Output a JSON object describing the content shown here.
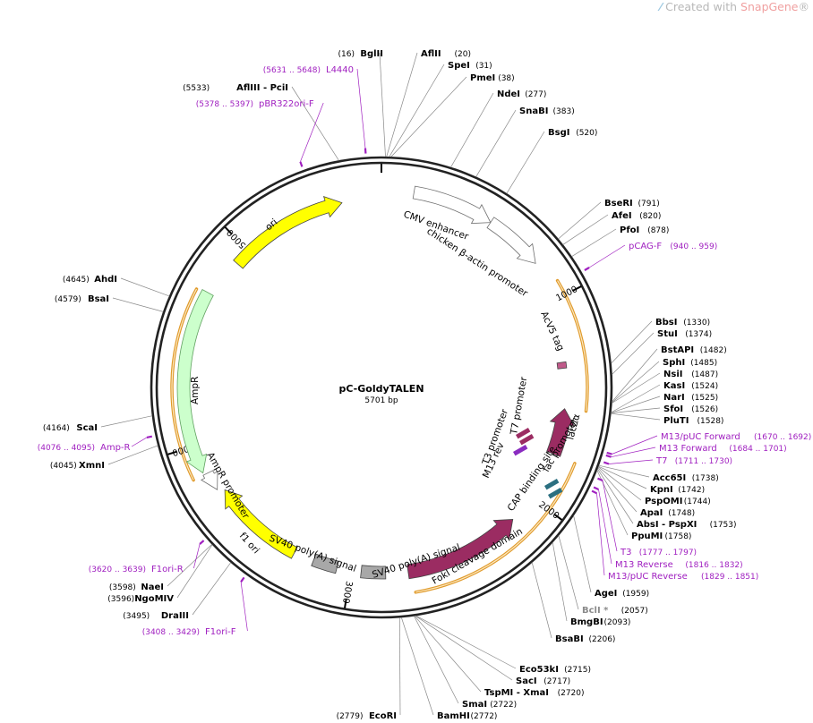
{
  "watermark": {
    "prefix": "Created with ",
    "brand": "SnapGene",
    "mark": "®"
  },
  "plasmid": {
    "name": "pC-GoldyTALEN",
    "size_label": "5701 bp",
    "length": 5701
  },
  "ticks": [
    {
      "label": "1000",
      "pos": 1000
    },
    {
      "label": "2000",
      "pos": 2000
    },
    {
      "label": "3000",
      "pos": 3000
    },
    {
      "label": "4000",
      "pos": 4000
    },
    {
      "label": "5000",
      "pos": 5000
    }
  ],
  "features": [
    {
      "name": "CMV enhancer",
      "start": 150,
      "end": 530,
      "color": "#ffffff",
      "stroke": "#707070"
    },
    {
      "name": "chicken β-actin promoter",
      "start": 530,
      "end": 810,
      "color": "#ffffff",
      "stroke": "#707070"
    },
    {
      "name": "AcV5 tag",
      "start": 1300,
      "end": 1330,
      "color": "#c05a8a"
    },
    {
      "name": "lacZα",
      "start": 1530,
      "end": 1760,
      "color": "#9b2c62"
    },
    {
      "name": "FokI cleavage domain",
      "start": 2140,
      "end": 2720,
      "color": "#9b2c62"
    },
    {
      "name": "SV40 poly(A) signal",
      "start": 2830,
      "end": 2950,
      "color": "#a8a8a8"
    },
    {
      "name": "SV40 poly(A) signal",
      "start": 3070,
      "end": 3190,
      "color": "#a8a8a8"
    },
    {
      "name": "f1 ori",
      "start": 3290,
      "end": 3750,
      "color": "#ffff00"
    },
    {
      "name": "AmpR promoter",
      "start": 3770,
      "end": 3860,
      "color": "#ffffff",
      "stroke": "#707070"
    },
    {
      "name": "AmpR",
      "start": 3870,
      "end": 4730,
      "color": "#ccffcc",
      "stroke": "#60a060"
    },
    {
      "name": "ori",
      "start": 4920,
      "end": 5510,
      "color": "#ffff00"
    }
  ],
  "small_features": [
    {
      "name": "M13 rev",
      "pos": 1680
    },
    {
      "name": "T3 promoter",
      "pos": 1700
    },
    {
      "name": "T7 promoter",
      "pos": 1720
    },
    {
      "name": "lac promoter",
      "pos": 1890
    },
    {
      "name": "CAP binding site",
      "pos": 1960
    }
  ],
  "sites": [
    {
      "name": "BglII",
      "pos_label": "(16)",
      "pos": 16
    },
    {
      "name": "AflII",
      "pos_label": "(20)",
      "pos": 20
    },
    {
      "name": "SpeI",
      "pos_label": "(31)",
      "pos": 31
    },
    {
      "name": "PmeI",
      "pos_label": "(38)",
      "pos": 38
    },
    {
      "name": "NdeI",
      "pos_label": "(277)",
      "pos": 277
    },
    {
      "name": "SnaBI",
      "pos_label": "(383)",
      "pos": 383
    },
    {
      "name": "BsgI",
      "pos_label": "(520)",
      "pos": 520
    },
    {
      "name": "BseRI",
      "pos_label": "(791)",
      "pos": 791
    },
    {
      "name": "AfeI",
      "pos_label": "(820)",
      "pos": 820
    },
    {
      "name": "PfoI",
      "pos_label": "(878)",
      "pos": 878
    },
    {
      "name": "BbsI",
      "pos_label": "(1330)",
      "pos": 1330
    },
    {
      "name": "StuI",
      "pos_label": "(1374)",
      "pos": 1374
    },
    {
      "name": "BstAPI",
      "pos_label": "(1482)",
      "pos": 1482
    },
    {
      "name": "SphI",
      "pos_label": "(1485)",
      "pos": 1485
    },
    {
      "name": "NsiI",
      "pos_label": "(1487)",
      "pos": 1487
    },
    {
      "name": "KasI",
      "pos_label": "(1524)",
      "pos": 1524
    },
    {
      "name": "NarI",
      "pos_label": "(1525)",
      "pos": 1525
    },
    {
      "name": "SfoI",
      "pos_label": "(1526)",
      "pos": 1526
    },
    {
      "name": "PluTI",
      "pos_label": "(1528)",
      "pos": 1528
    },
    {
      "name": "Acc65I",
      "pos_label": "(1738)",
      "pos": 1738
    },
    {
      "name": "KpnI",
      "pos_label": "(1742)",
      "pos": 1742
    },
    {
      "name": "PspOMI",
      "pos_label": "(1744)",
      "pos": 1744
    },
    {
      "name": "ApaI",
      "pos_label": "(1748)",
      "pos": 1748
    },
    {
      "name": "AbsI - PspXI",
      "pos_label": "(1753)",
      "pos": 1753
    },
    {
      "name": "PpuMI",
      "pos_label": "(1758)",
      "pos": 1758
    },
    {
      "name": "AgeI",
      "pos_label": "(1959)",
      "pos": 1959
    },
    {
      "name": "BclI *",
      "pos_label": "(2057)",
      "pos": 2057,
      "grey": true
    },
    {
      "name": "BmgBI",
      "pos_label": "(2093)",
      "pos": 2093
    },
    {
      "name": "BsaBI",
      "pos_label": "(2206)",
      "pos": 2206
    },
    {
      "name": "Eco53kI",
      "pos_label": "(2715)",
      "pos": 2715
    },
    {
      "name": "SacI",
      "pos_label": "(2717)",
      "pos": 2717
    },
    {
      "name": "TspMI - XmaI",
      "pos_label": "(2720)",
      "pos": 2720
    },
    {
      "name": "SmaI",
      "pos_label": "(2722)",
      "pos": 2722
    },
    {
      "name": "BamHI",
      "pos_label": "(2772)",
      "pos": 2772
    },
    {
      "name": "EcoRI",
      "pos_label": "(2779)",
      "pos": 2779
    },
    {
      "name": "DraIII",
      "pos_label": "(3495)",
      "pos": 3495
    },
    {
      "name": "NgoMIV",
      "pos_label": "(3596)",
      "pos": 3596
    },
    {
      "name": "NaeI",
      "pos_label": "(3598)",
      "pos": 3598
    },
    {
      "name": "XmnI",
      "pos_label": "(4045)",
      "pos": 4045
    },
    {
      "name": "ScaI",
      "pos_label": "(4164)",
      "pos": 4164
    },
    {
      "name": "BsaI",
      "pos_label": "(4579)",
      "pos": 4579
    },
    {
      "name": "AhdI",
      "pos_label": "(4645)",
      "pos": 4645
    },
    {
      "name": "AflIII - PciI",
      "pos_label": "(5533)",
      "pos": 5533
    }
  ],
  "primers": [
    {
      "name": "L4440",
      "range": "(5631 .. 5648)",
      "pos": 5640
    },
    {
      "name": "pBR322ori-F",
      "range": "(5378 .. 5397)",
      "pos": 5388
    },
    {
      "name": "pCAG-F",
      "range": "(940 .. 959)",
      "pos": 950
    },
    {
      "name": "M13/pUC Forward",
      "range": "(1670 .. 1692)",
      "pos": 1681
    },
    {
      "name": "M13 Forward",
      "range": "(1684 .. 1701)",
      "pos": 1692
    },
    {
      "name": "T7",
      "range": "(1711 .. 1730)",
      "pos": 1720
    },
    {
      "name": "T3",
      "range": "(1777 .. 1797)",
      "pos": 1787
    },
    {
      "name": "M13 Reverse",
      "range": "(1816 .. 1832)",
      "pos": 1824
    },
    {
      "name": "M13/pUC Reverse",
      "range": "(1829 .. 1851)",
      "pos": 1840
    },
    {
      "name": "Amp-R",
      "range": "(4076 .. 4095)",
      "pos": 4085
    },
    {
      "name": "F1ori-R",
      "range": "(3620 .. 3639)",
      "pos": 3630
    },
    {
      "name": "F1ori-F",
      "range": "(3408 .. 3429)",
      "pos": 3418
    }
  ]
}
